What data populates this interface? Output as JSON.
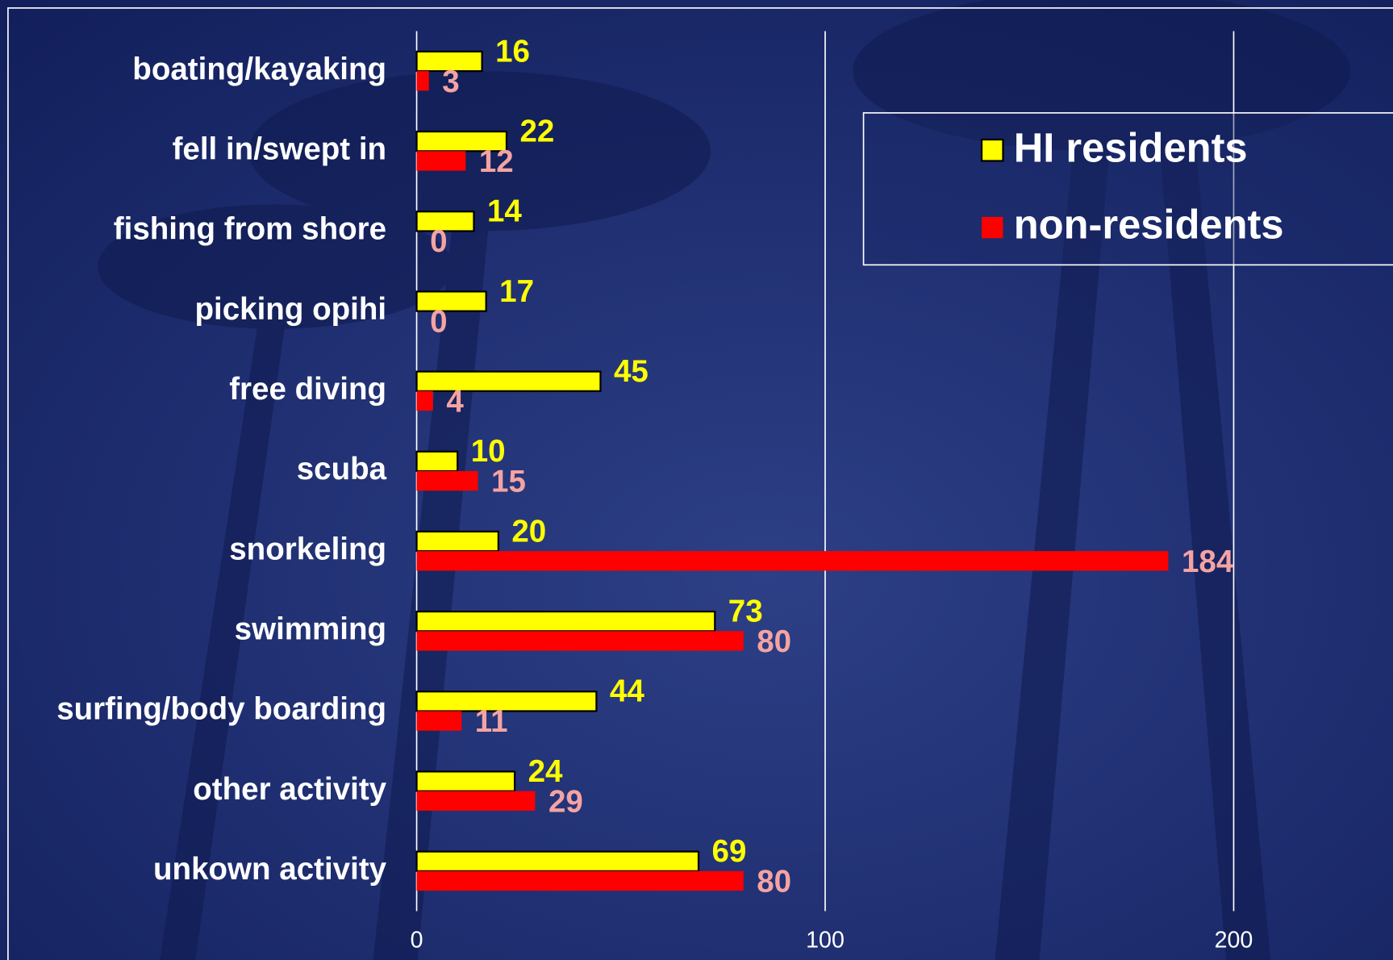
{
  "chart_data": {
    "type": "hbar",
    "categories": [
      "boating/kayaking",
      "fell in/swept in",
      "fishing from shore",
      "picking opihi",
      "free diving",
      "scuba",
      "snorkeling",
      "swimming",
      "surfing/body boarding",
      "other activity",
      "unkown activity"
    ],
    "series": [
      {
        "name": "HI residents",
        "color": "#ffff00",
        "label_color": "#ffff00",
        "values": [
          16,
          22,
          14,
          17,
          45,
          10,
          20,
          73,
          44,
          24,
          69
        ]
      },
      {
        "name": "non-residents",
        "color": "#ff0000",
        "label_color": "#f4a3a3",
        "values": [
          3,
          12,
          0,
          0,
          4,
          15,
          184,
          80,
          11,
          29,
          80
        ]
      }
    ],
    "xlim": [
      0,
      239
    ],
    "xticks": [
      0,
      100,
      200
    ],
    "grid": true,
    "legend": "upper right"
  }
}
